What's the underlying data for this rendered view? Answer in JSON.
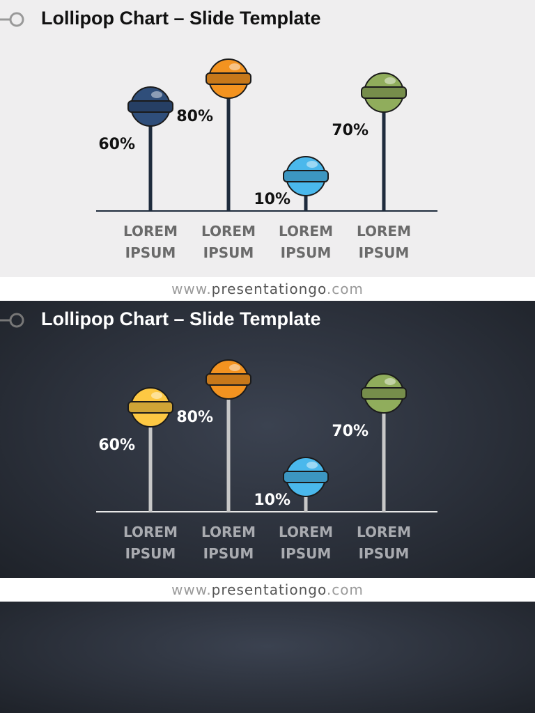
{
  "chart_data": [
    {
      "type": "lollipop",
      "theme": "light",
      "title": "Lollipop Chart – Slide Template",
      "categories": [
        "LOREM IPSUM",
        "LOREM IPSUM",
        "LOREM IPSUM",
        "LOREM IPSUM"
      ],
      "values": [
        60,
        80,
        10,
        70
      ],
      "value_labels": [
        "60%",
        "80%",
        "10%",
        "70%"
      ],
      "colors": [
        "#2f4e7a",
        "#f39320",
        "#4ab8ec",
        "#90ad5c"
      ],
      "stick_color": "#1e2b3c",
      "footer": [
        "www.",
        "presentationgo",
        ".com"
      ]
    },
    {
      "type": "lollipop",
      "theme": "dark",
      "title": "Lollipop Chart – Slide Template",
      "categories": [
        "LOREM IPSUM",
        "LOREM IPSUM",
        "LOREM IPSUM",
        "LOREM IPSUM"
      ],
      "values": [
        60,
        80,
        10,
        70
      ],
      "value_labels": [
        "60%",
        "80%",
        "10%",
        "70%"
      ],
      "colors": [
        "#fdc843",
        "#f39320",
        "#4ab8ec",
        "#90ad5c"
      ],
      "stick_color": "#c8c8c8",
      "footer": [
        "www.",
        "presentationgo",
        ".com"
      ]
    }
  ]
}
